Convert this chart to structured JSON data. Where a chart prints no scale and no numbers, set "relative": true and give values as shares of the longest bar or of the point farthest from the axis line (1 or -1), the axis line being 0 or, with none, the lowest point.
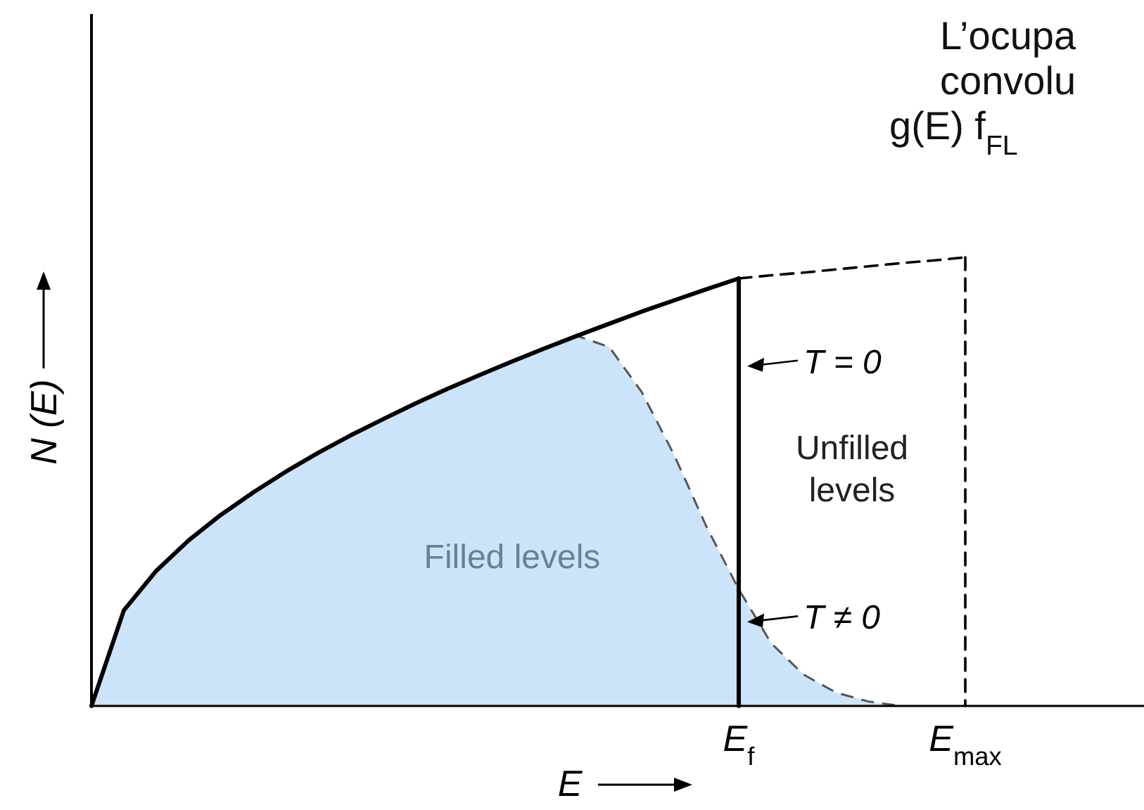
{
  "chart_data": {
    "type": "line",
    "relative": true,
    "xlabel": "E",
    "ylabel": "N (E)",
    "categories": [
      null,
      null,
      null,
      null,
      null,
      null,
      null,
      null,
      null,
      null,
      null,
      null,
      null,
      null,
      null,
      null,
      null,
      null,
      null,
      null,
      "E$_{f}$",
      null,
      null,
      null,
      null,
      null,
      null,
      "E$_{max}$",
      null,
      null,
      null,
      null,
      null
    ],
    "series": [
      {
        "type": "area",
        "name": "Filled levels",
        "color": "#cce4fa",
        "line_style": "dashed",
        "values": [
          0,
          0.213,
          0.301,
          0.369,
          0.426,
          0.476,
          0.522,
          0.564,
          0.603,
          0.639,
          0.674,
          0.707,
          0.738,
          0.768,
          0.797,
          0.825,
          0.8,
          0.7,
          0.56,
          0.4,
          0.26,
          0.14,
          0.07,
          0.03,
          0.01,
          0,
          null,
          null,
          null,
          null,
          null,
          null,
          null
        ]
      },
      {
        "color": "#000000",
        "line_style": "solid",
        "values": [
          0,
          0.213,
          0.301,
          0.369,
          0.426,
          0.476,
          0.522,
          0.564,
          0.603,
          0.639,
          0.674,
          0.707,
          0.738,
          0.768,
          0.797,
          0.825,
          0.852,
          0.879,
          0.904,
          0.929,
          0.953,
          null,
          null,
          null,
          null,
          null,
          null,
          null,
          null,
          null,
          null,
          null,
          null
        ]
      },
      {
        "color": "#000000",
        "line_style": "solid",
        "x": [
          "E$_{f}$",
          "E$_{f}$"
        ],
        "values": [
          0.953,
          0
        ]
      },
      {
        "name": "Unfilled levels",
        "color": "#000000",
        "line_style": "dashed",
        "values": [
          null,
          null,
          null,
          null,
          null,
          null,
          null,
          null,
          null,
          null,
          null,
          null,
          null,
          null,
          null,
          null,
          null,
          null,
          null,
          null,
          0.953,
          0.96,
          0.966,
          0.973,
          0.98,
          0.987,
          0.993,
          1,
          null,
          null,
          null,
          null,
          null
        ]
      },
      {
        "color": "#000000",
        "line_style": "dashed",
        "x": [
          "E$_{max}$",
          "E$_{max}$"
        ],
        "values": [
          1,
          0
        ]
      }
    ],
    "annotations": [
      {
        "text": "T = 0",
        "x": "E$_{f}$",
        "y": 0.77
      },
      {
        "text": "T ≠ 0",
        "x": "E$_{f}$",
        "y": 0.2
      },
      "L’ocupa",
      "convolu",
      "g(E) f$_{FL}$"
    ]
  }
}
